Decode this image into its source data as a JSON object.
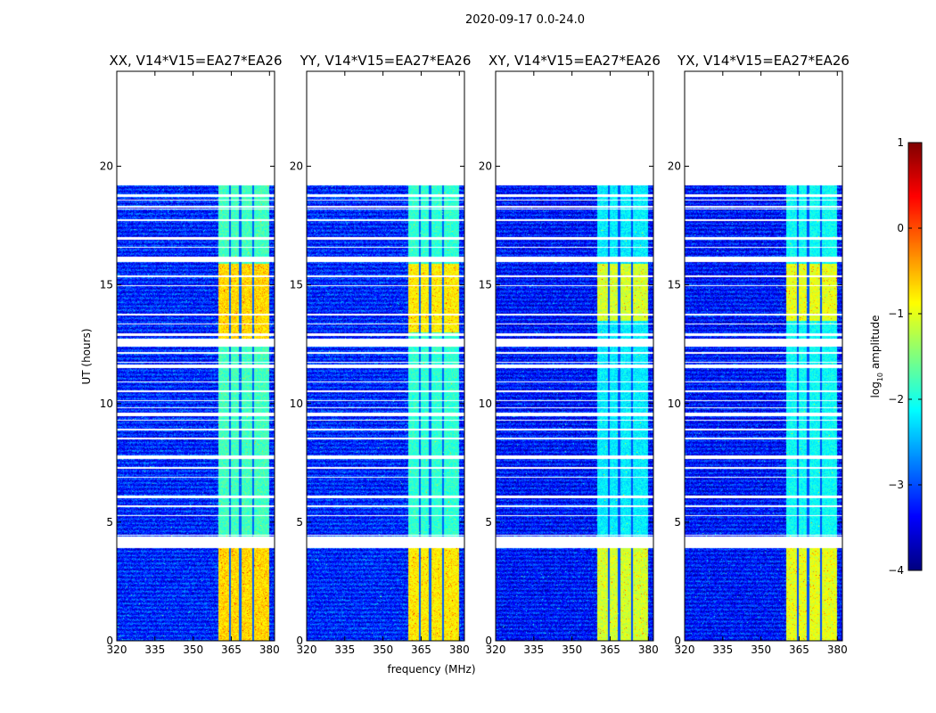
{
  "chart_data": {
    "type": "heatmap",
    "suptitle": "2020-09-17 0.0-24.0",
    "x": {
      "label": "frequency (MHz)",
      "range": [
        320,
        382
      ],
      "ticks": [
        320,
        335,
        350,
        365,
        380
      ],
      "tick_labels": [
        "320",
        "335",
        "350",
        "365",
        "380"
      ]
    },
    "y": {
      "label": "UT (hours)",
      "range": [
        0,
        24
      ],
      "ticks": [
        0,
        5,
        10,
        15,
        20
      ],
      "tick_labels": [
        "0",
        "5",
        "10",
        "15",
        "20"
      ]
    },
    "colorbar": {
      "label": "log10 amplitude",
      "label_main": "log",
      "label_sub": "10",
      "label_rest": " amplitude",
      "colormap": "jet",
      "range": [
        -4,
        1
      ],
      "ticks": [
        1,
        0,
        -1,
        -2,
        -3,
        -4
      ],
      "tick_labels": [
        "1",
        "0",
        "−1",
        "−2",
        "−3",
        "−4"
      ]
    },
    "data_extent_hours": [
      0,
      19.2
    ],
    "bright_band_mhz": [
      360,
      380
    ],
    "bright_channel_gaps_mhz": [
      364.5,
      368.5,
      373.5
    ],
    "flagged_gaps_hours": [
      [
        3.9,
        4.4
      ],
      [
        6.0,
        6.12
      ],
      [
        7.7,
        7.8
      ],
      [
        8.5,
        8.55
      ],
      [
        9.45,
        9.6
      ],
      [
        9.8,
        9.85
      ],
      [
        11.5,
        11.65
      ],
      [
        12.4,
        12.75
      ],
      [
        12.85,
        12.95
      ],
      [
        15.95,
        16.2
      ],
      [
        16.9,
        17.0
      ],
      [
        17.7,
        17.78
      ],
      [
        18.25,
        18.32
      ],
      [
        18.7,
        18.8
      ]
    ],
    "panels": [
      {
        "title": "XX, V14*V15=EA27*EA26",
        "mean_log_amp": -3.2,
        "band_log_amp": -1.4,
        "bright_hours": [
          [
            0,
            3.9
          ],
          [
            12.7,
            15.9
          ]
        ]
      },
      {
        "title": "YY, V14*V15=EA27*EA26",
        "mean_log_amp": -3.2,
        "band_log_amp": -1.5,
        "bright_hours": [
          [
            0,
            3.9
          ],
          [
            13.0,
            15.9
          ]
        ]
      },
      {
        "title": "XY, V14*V15=EA27*EA26",
        "mean_log_amp": -3.3,
        "band_log_amp": -1.8,
        "bright_hours": [
          [
            0,
            3.9
          ],
          [
            13.5,
            15.9
          ]
        ]
      },
      {
        "title": "YX, V14*V15=EA27*EA26",
        "mean_log_amp": -3.3,
        "band_log_amp": -1.7,
        "bright_hours": [
          [
            0,
            3.9
          ],
          [
            13.5,
            15.9
          ]
        ]
      }
    ]
  }
}
